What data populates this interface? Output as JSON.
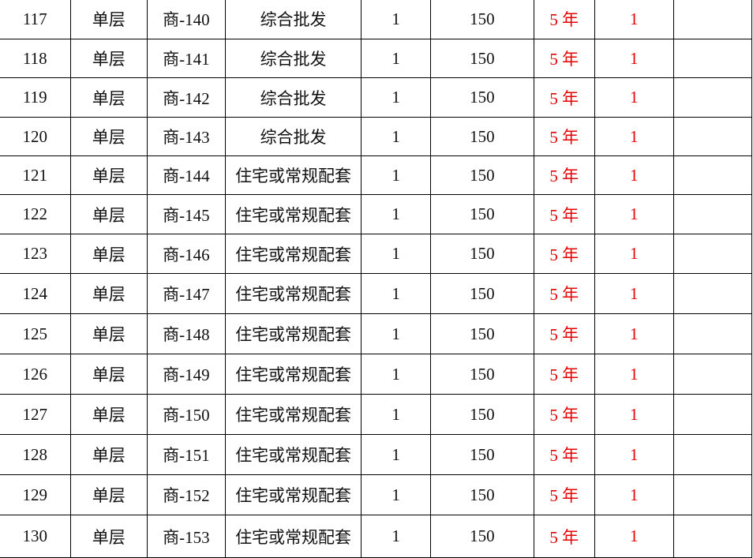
{
  "table": {
    "rows": [
      {
        "no": "117",
        "type": "单层",
        "code": "商-140",
        "use": "综合批发",
        "qty": "1",
        "area": "150",
        "term": "5 年",
        "count": "1",
        "note": ""
      },
      {
        "no": "118",
        "type": "单层",
        "code": "商-141",
        "use": "综合批发",
        "qty": "1",
        "area": "150",
        "term": "5 年",
        "count": "1",
        "note": ""
      },
      {
        "no": "119",
        "type": "单层",
        "code": "商-142",
        "use": "综合批发",
        "qty": "1",
        "area": "150",
        "term": "5 年",
        "count": "1",
        "note": ""
      },
      {
        "no": "120",
        "type": "单层",
        "code": "商-143",
        "use": "综合批发",
        "qty": "1",
        "area": "150",
        "term": "5 年",
        "count": "1",
        "note": ""
      },
      {
        "no": "121",
        "type": "单层",
        "code": "商-144",
        "use": "住宅或常规配套",
        "qty": "1",
        "area": "150",
        "term": "5 年",
        "count": "1",
        "note": ""
      },
      {
        "no": "122",
        "type": "单层",
        "code": "商-145",
        "use": "住宅或常规配套",
        "qty": "1",
        "area": "150",
        "term": "5 年",
        "count": "1",
        "note": ""
      },
      {
        "no": "123",
        "type": "单层",
        "code": "商-146",
        "use": "住宅或常规配套",
        "qty": "1",
        "area": "150",
        "term": "5 年",
        "count": "1",
        "note": ""
      },
      {
        "no": "124",
        "type": "单层",
        "code": "商-147",
        "use": "住宅或常规配套",
        "qty": "1",
        "area": "150",
        "term": "5 年",
        "count": "1",
        "note": ""
      },
      {
        "no": "125",
        "type": "单层",
        "code": "商-148",
        "use": "住宅或常规配套",
        "qty": "1",
        "area": "150",
        "term": "5 年",
        "count": "1",
        "note": ""
      },
      {
        "no": "126",
        "type": "单层",
        "code": "商-149",
        "use": "住宅或常规配套",
        "qty": "1",
        "area": "150",
        "term": "5 年",
        "count": "1",
        "note": ""
      },
      {
        "no": "127",
        "type": "单层",
        "code": "商-150",
        "use": "住宅或常规配套",
        "qty": "1",
        "area": "150",
        "term": "5 年",
        "count": "1",
        "note": ""
      },
      {
        "no": "128",
        "type": "单层",
        "code": "商-151",
        "use": "住宅或常规配套",
        "qty": "1",
        "area": "150",
        "term": "5 年",
        "count": "1",
        "note": ""
      },
      {
        "no": "129",
        "type": "单层",
        "code": "商-152",
        "use": "住宅或常规配套",
        "qty": "1",
        "area": "150",
        "term": "5 年",
        "count": "1",
        "note": ""
      },
      {
        "no": "130",
        "type": "单层",
        "code": "商-153",
        "use": "住宅或常规配套",
        "qty": "1",
        "area": "150",
        "term": "5 年",
        "count": "1",
        "note": ""
      }
    ]
  },
  "colors": {
    "text": "#111111",
    "highlight": "#e60000"
  }
}
